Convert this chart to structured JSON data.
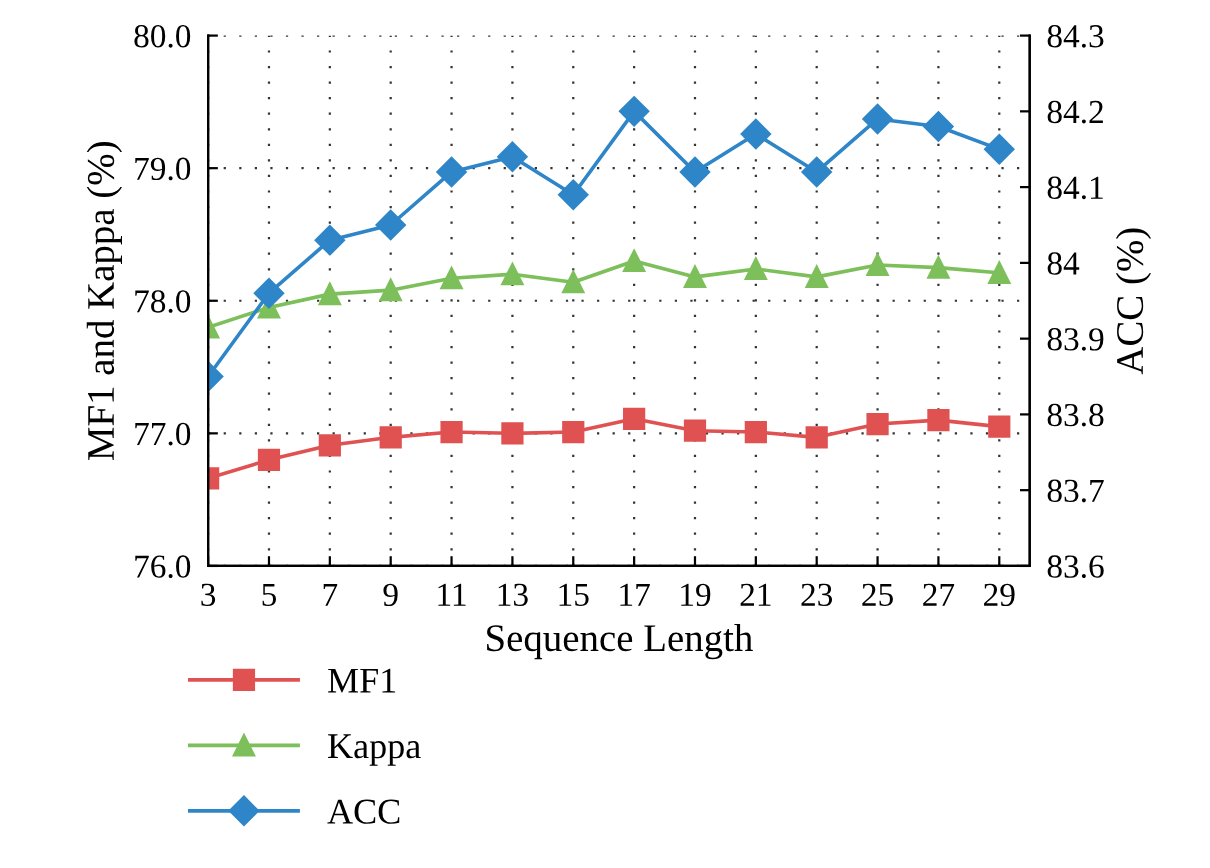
{
  "chart_data": {
    "type": "line",
    "xlabel": "Sequence Length",
    "ylabel": "MF1 and Kappa (%)",
    "y2label": "ACC (%)",
    "x": [
      3,
      5,
      7,
      9,
      11,
      13,
      15,
      17,
      19,
      21,
      23,
      25,
      27,
      29
    ],
    "xlim": [
      3,
      30
    ],
    "xticks": [
      3,
      5,
      7,
      9,
      11,
      13,
      15,
      17,
      19,
      21,
      23,
      25,
      27,
      29
    ],
    "ylim": [
      76,
      80
    ],
    "yticks": [
      {
        "value": 76,
        "label": "76.0"
      },
      {
        "value": 77,
        "label": "77.0"
      },
      {
        "value": 78,
        "label": "78.0"
      },
      {
        "value": 79,
        "label": "79.0"
      },
      {
        "value": 80,
        "label": "80.0"
      }
    ],
    "y2lim": [
      83.6,
      84.3
    ],
    "y2ticks": [
      83.6,
      83.7,
      83.8,
      83.9,
      84,
      84.1,
      84.2,
      84.3
    ],
    "grid": true,
    "legend": "bottom left",
    "line_style": "solid",
    "series": [
      {
        "name": "MF1",
        "color": "#e05252",
        "marker": "square",
        "values": [
          76.66,
          76.8,
          76.91,
          76.97,
          77.01,
          77.0,
          77.01,
          77.11,
          77.02,
          77.01,
          76.97,
          77.07,
          77.1,
          77.05
        ]
      },
      {
        "name": "Kappa",
        "color": "#7dbf5a",
        "marker": "triangle",
        "values": [
          77.8,
          77.95,
          78.05,
          78.08,
          78.17,
          78.2,
          78.14,
          78.3,
          78.18,
          78.24,
          78.18,
          78.27,
          78.25,
          78.21
        ]
      },
      {
        "name": "ACC",
        "color": "#2e86c8",
        "marker": "diamond",
        "axis": "y2",
        "values": [
          83.85,
          83.96,
          84.03,
          84.05,
          84.12,
          84.14,
          84.09,
          84.2,
          84.12,
          84.17,
          84.12,
          84.19,
          84.18,
          84.15
        ]
      }
    ]
  }
}
